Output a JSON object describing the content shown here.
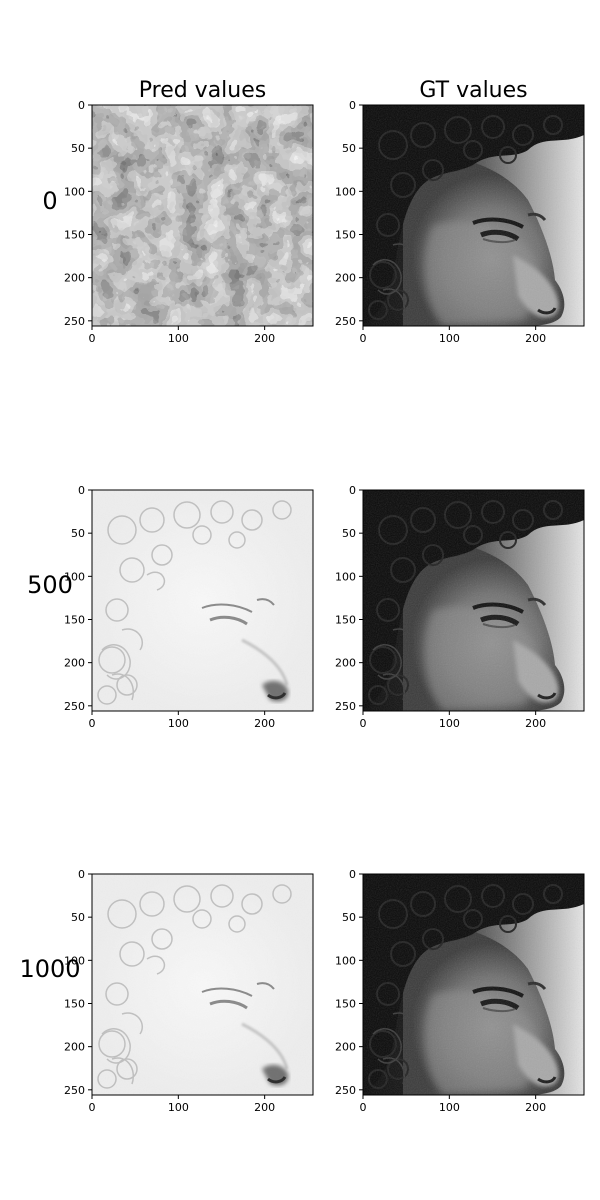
{
  "figure": {
    "column_titles": [
      "Pred values",
      "GT values"
    ],
    "row_labels": [
      "0",
      "500",
      "1000"
    ]
  },
  "chart_data": {
    "type": "heatmap",
    "colormap": "grayscale",
    "grid": false,
    "rows": 3,
    "cols": 2,
    "panels": [
      {
        "row_label": "0",
        "column": "Pred values",
        "content": "noisy-blobs",
        "xlim": [
          0,
          256
        ],
        "ylim": [
          256,
          0
        ]
      },
      {
        "row_label": "0",
        "column": "GT values",
        "content": "face",
        "xlim": [
          0,
          256
        ],
        "ylim": [
          256,
          0
        ]
      },
      {
        "row_label": "500",
        "column": "Pred values",
        "content": "face-edges",
        "xlim": [
          0,
          256
        ],
        "ylim": [
          256,
          0
        ]
      },
      {
        "row_label": "500",
        "column": "GT values",
        "content": "face",
        "xlim": [
          0,
          256
        ],
        "ylim": [
          256,
          0
        ]
      },
      {
        "row_label": "1000",
        "column": "Pred values",
        "content": "face-edges",
        "xlim": [
          0,
          256
        ],
        "ylim": [
          256,
          0
        ]
      },
      {
        "row_label": "1000",
        "column": "GT values",
        "content": "face",
        "xlim": [
          0,
          256
        ],
        "ylim": [
          256,
          0
        ]
      }
    ],
    "x_ticks": [
      "0",
      "100",
      "200"
    ],
    "y_ticks": [
      "0",
      "50",
      "100",
      "150",
      "200",
      "250"
    ]
  }
}
